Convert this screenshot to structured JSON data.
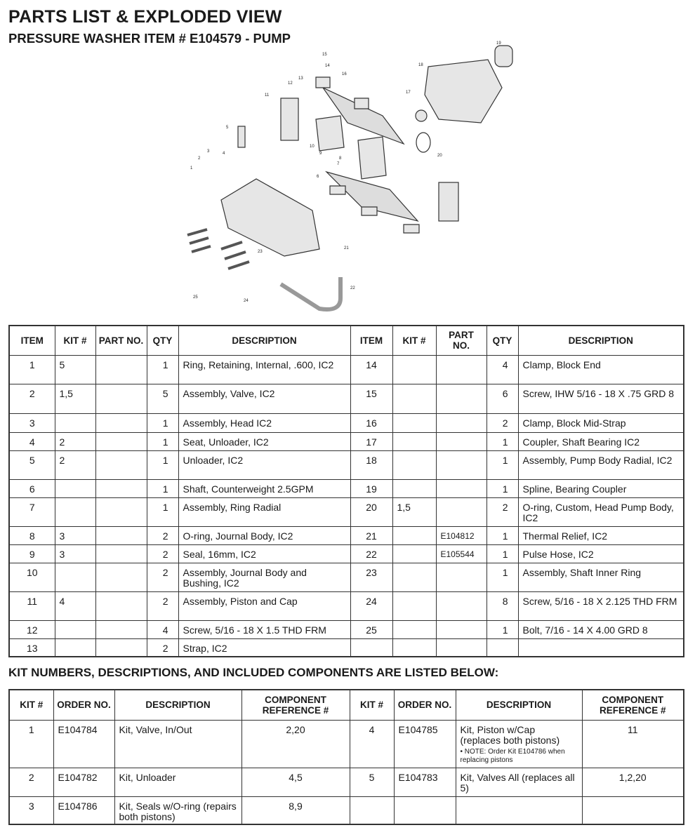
{
  "title": "PARTS LIST & EXPLODED VIEW",
  "subtitle": "PRESSURE WASHER ITEM # E104579 - PUMP",
  "diagram": {
    "callouts": [
      "1",
      "2",
      "3",
      "4",
      "5",
      "6",
      "7",
      "8",
      "9",
      "10",
      "11",
      "12",
      "13",
      "14",
      "15",
      "16",
      "17",
      "18",
      "19",
      "20",
      "21",
      "22",
      "23",
      "24",
      "25"
    ]
  },
  "parts_table": {
    "headers": [
      "ITEM",
      "KIT #",
      "PART NO.",
      "QTY",
      "DESCRIPTION"
    ],
    "rows": [
      {
        "item": "1",
        "kit": "5",
        "part": "",
        "qty": "1",
        "desc": "Ring, Retaining, Internal, .600, IC2"
      },
      {
        "item": "2",
        "kit": "1,5",
        "part": "",
        "qty": "5",
        "desc": "Assembly, Valve, IC2"
      },
      {
        "item": "3",
        "kit": "",
        "part": "",
        "qty": "1",
        "desc": "Assembly, Head IC2"
      },
      {
        "item": "4",
        "kit": "2",
        "part": "",
        "qty": "1",
        "desc": "Seat, Unloader, IC2"
      },
      {
        "item": "5",
        "kit": "2",
        "part": "",
        "qty": "1",
        "desc": "Unloader, IC2"
      },
      {
        "item": "6",
        "kit": "",
        "part": "",
        "qty": "1",
        "desc": "Shaft, Counterweight 2.5GPM"
      },
      {
        "item": "7",
        "kit": "",
        "part": "",
        "qty": "1",
        "desc": "Assembly, Ring Radial"
      },
      {
        "item": "8",
        "kit": "3",
        "part": "",
        "qty": "2",
        "desc": "O-ring, Journal Body, IC2"
      },
      {
        "item": "9",
        "kit": "3",
        "part": "",
        "qty": "2",
        "desc": "Seal, 16mm, IC2"
      },
      {
        "item": "10",
        "kit": "",
        "part": "",
        "qty": "2",
        "desc": "Assembly, Journal Body and Bushing, IC2"
      },
      {
        "item": "11",
        "kit": "4",
        "part": "",
        "qty": "2",
        "desc": "Assembly, Piston and Cap"
      },
      {
        "item": "12",
        "kit": "",
        "part": "",
        "qty": "4",
        "desc": "Screw, 5/16 - 18 X 1.5 THD FRM"
      },
      {
        "item": "13",
        "kit": "",
        "part": "",
        "qty": "2",
        "desc": "Strap, IC2"
      },
      {
        "item": "14",
        "kit": "",
        "part": "",
        "qty": "4",
        "desc": "Clamp, Block End"
      },
      {
        "item": "15",
        "kit": "",
        "part": "",
        "qty": "6",
        "desc": "Screw, IHW 5/16 - 18 X .75 GRD 8"
      },
      {
        "item": "16",
        "kit": "",
        "part": "",
        "qty": "2",
        "desc": "Clamp, Block Mid-Strap"
      },
      {
        "item": "17",
        "kit": "",
        "part": "",
        "qty": "1",
        "desc": "Coupler, Shaft Bearing IC2"
      },
      {
        "item": "18",
        "kit": "",
        "part": "",
        "qty": "1",
        "desc": "Assembly, Pump Body Radial, IC2"
      },
      {
        "item": "19",
        "kit": "",
        "part": "",
        "qty": "1",
        "desc": "Spline, Bearing Coupler"
      },
      {
        "item": "20",
        "kit": "1,5",
        "part": "",
        "qty": "2",
        "desc": "O-ring, Custom, Head Pump Body, IC2"
      },
      {
        "item": "21",
        "kit": "",
        "part": "E104812",
        "qty": "1",
        "desc": "Thermal Relief, IC2"
      },
      {
        "item": "22",
        "kit": "",
        "part": "E105544",
        "qty": "1",
        "desc": "Pulse Hose, IC2"
      },
      {
        "item": "23",
        "kit": "",
        "part": "",
        "qty": "1",
        "desc": "Assembly, Shaft Inner Ring"
      },
      {
        "item": "24",
        "kit": "",
        "part": "",
        "qty": "8",
        "desc": "Screw, 5/16 - 18 X 2.125 THD FRM"
      },
      {
        "item": "25",
        "kit": "",
        "part": "",
        "qty": "1",
        "desc": "Bolt, 7/16 - 14 X 4.00 GRD 8"
      }
    ]
  },
  "kit_heading": "KIT NUMBERS, DESCRIPTIONS, AND INCLUDED COMPONENTS ARE LISTED BELOW:",
  "kit_table": {
    "headers": [
      "KIT #",
      "ORDER NO.",
      "DESCRIPTION",
      "COMPONENT REFERENCE #"
    ],
    "rows": [
      {
        "kit": "1",
        "order": "E104784",
        "desc": "Kit, Valve, In/Out",
        "note": "",
        "ref": "2,20"
      },
      {
        "kit": "2",
        "order": "E104782",
        "desc": "Kit, Unloader",
        "note": "",
        "ref": "4,5"
      },
      {
        "kit": "3",
        "order": "E104786",
        "desc": "Kit, Seals w/O-ring (repairs both pistons)",
        "note": "",
        "ref": "8,9"
      },
      {
        "kit": "4",
        "order": "E104785",
        "desc": "Kit, Piston w/Cap (replaces both pistons)",
        "note": "• NOTE: Order Kit E104786 when replacing pistons",
        "ref": "11"
      },
      {
        "kit": "5",
        "order": "E104783",
        "desc": "Kit, Valves All (replaces all 5)",
        "note": "",
        "ref": "1,2,20"
      }
    ]
  }
}
